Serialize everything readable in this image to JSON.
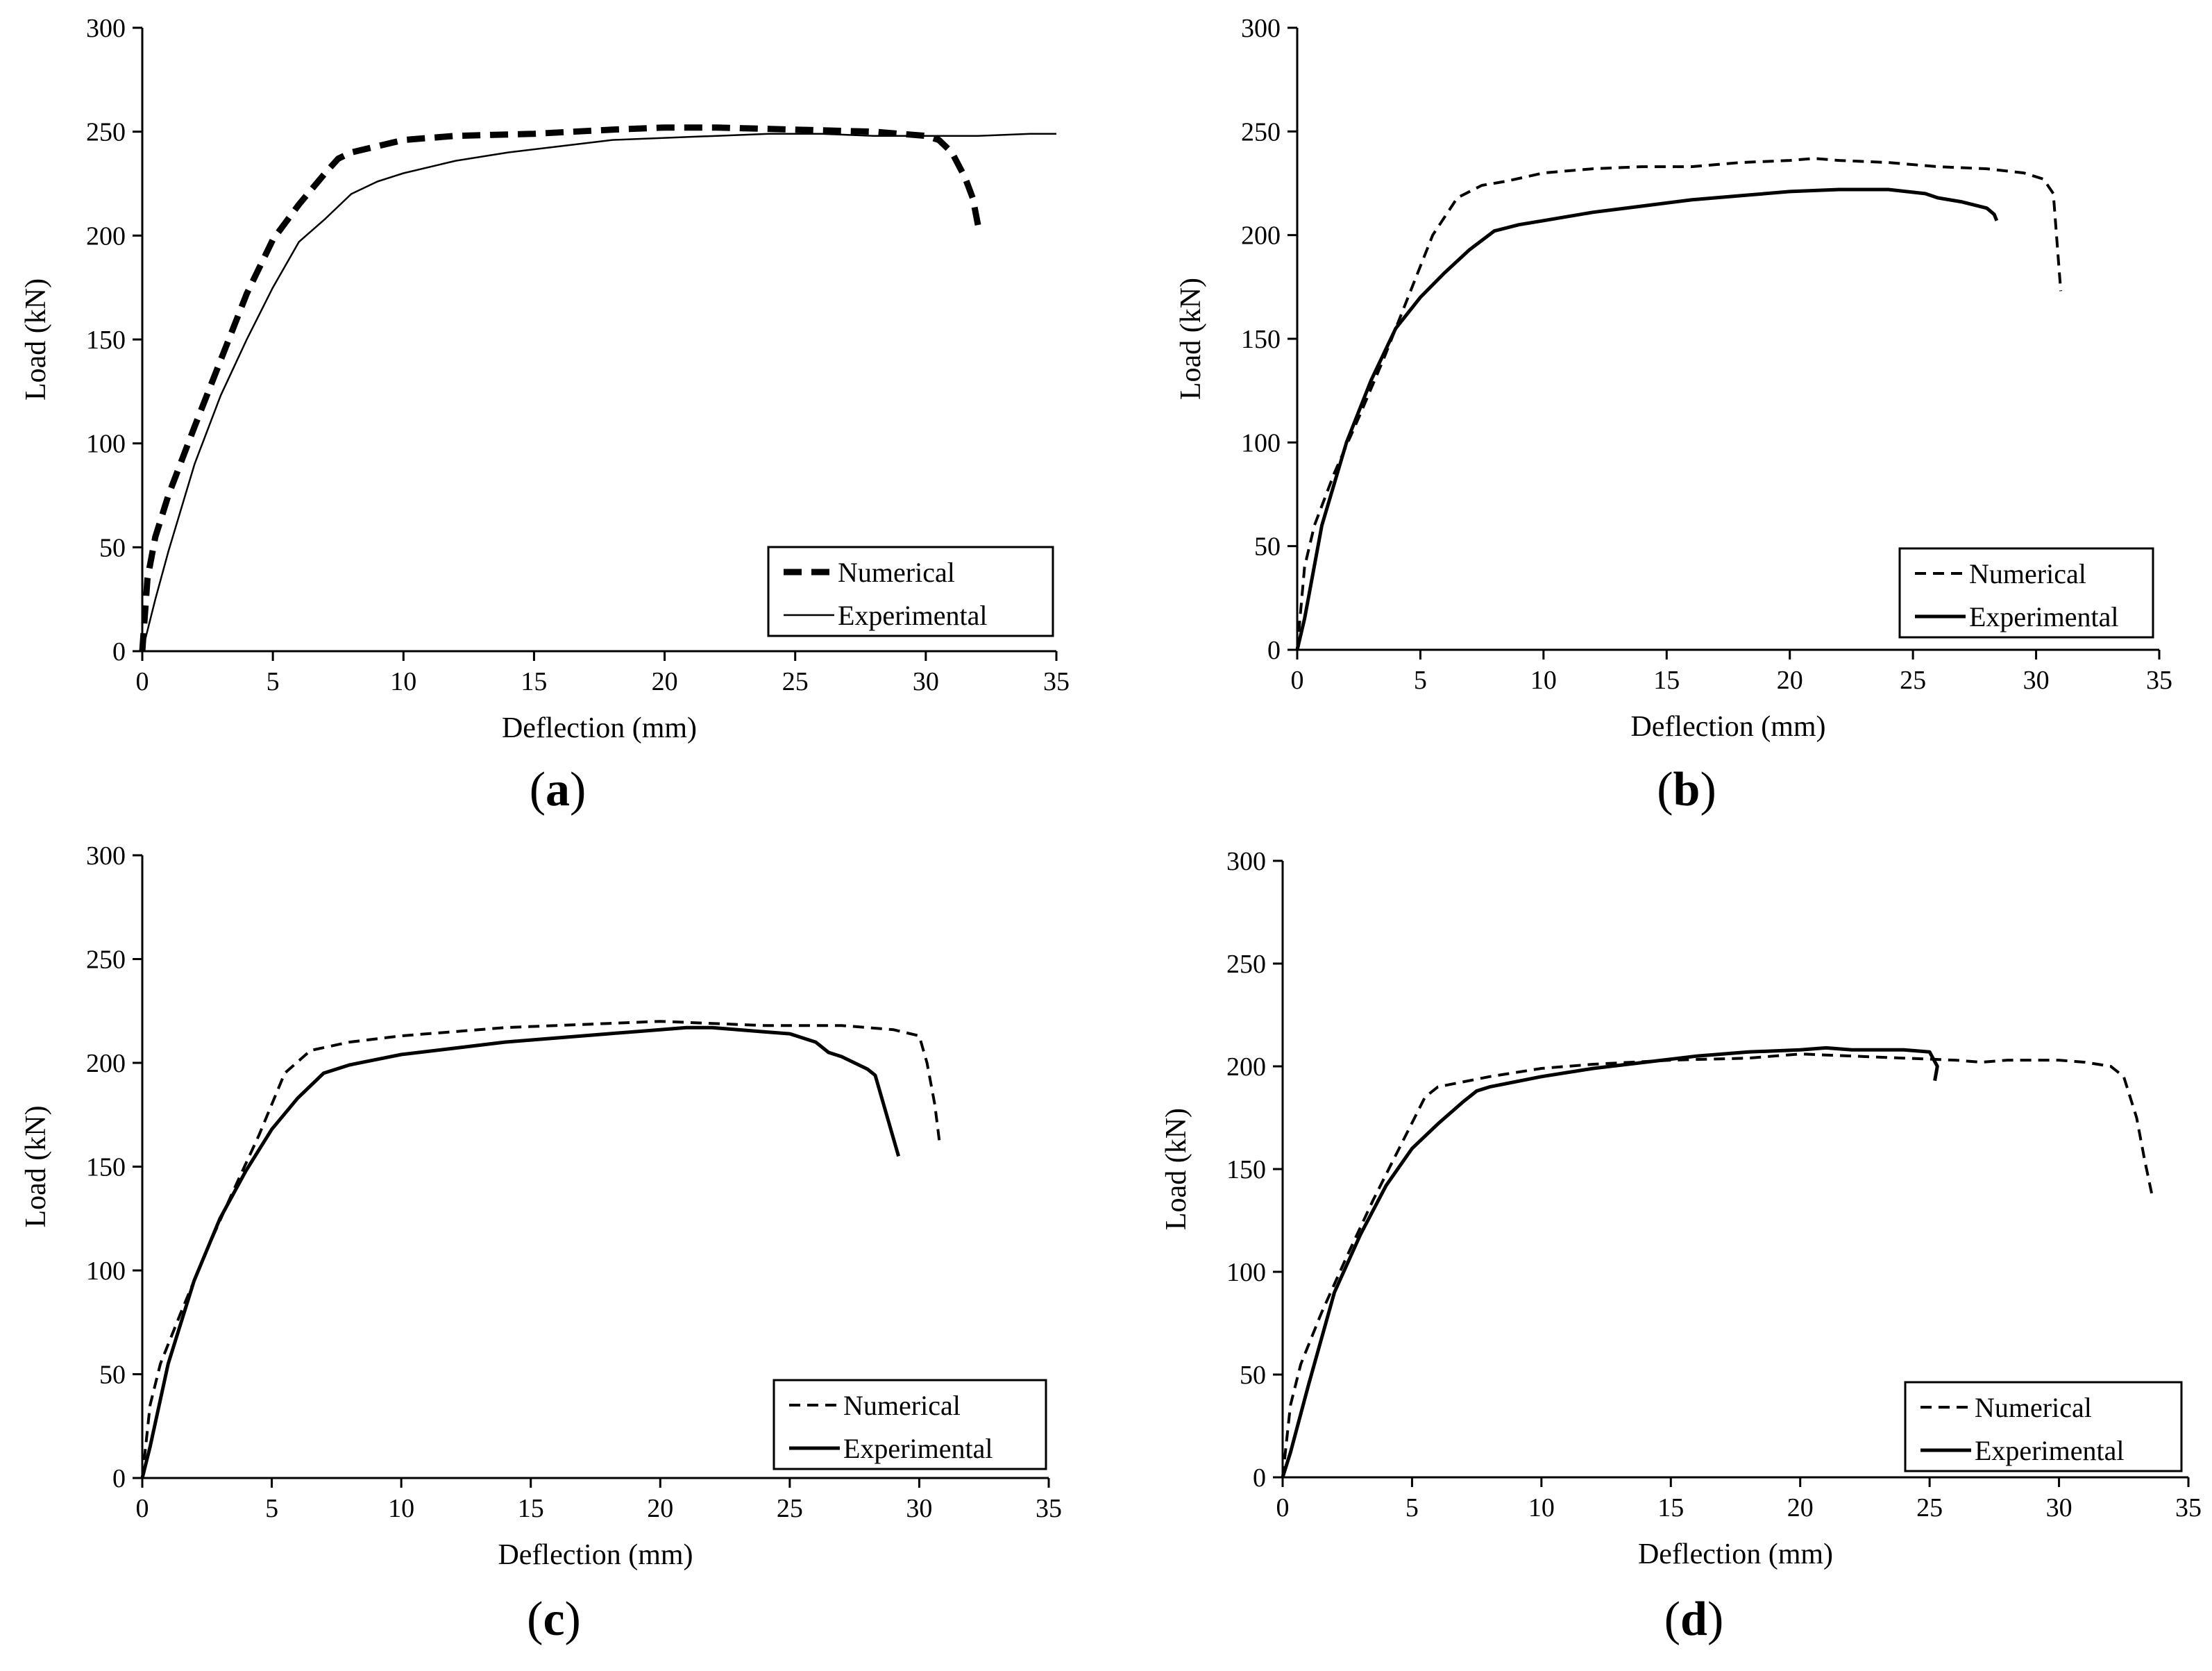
{
  "chart_data": [
    {
      "type": "line",
      "panel_label": "a",
      "xlabel": "Deflection (mm)",
      "ylabel": "Load (kN)",
      "xlim": [
        0,
        35
      ],
      "ylim": [
        0,
        300
      ],
      "xticks": [
        0,
        5,
        10,
        15,
        20,
        25,
        30,
        35
      ],
      "yticks": [
        0,
        50,
        100,
        150,
        200,
        250,
        300
      ],
      "grid": false,
      "legend_position": "bottom-right",
      "series": [
        {
          "name": "Numerical",
          "style": "thick-dashed",
          "x": [
            0,
            0.2,
            0.5,
            1,
            2,
            3,
            4,
            5,
            6,
            7,
            7.5,
            8,
            9,
            10,
            12,
            15,
            18,
            20,
            22,
            25,
            28,
            30,
            30.5,
            31,
            31.5,
            31.8,
            32
          ],
          "y": [
            0,
            35,
            55,
            75,
            108,
            140,
            172,
            198,
            215,
            230,
            237,
            240,
            243,
            246,
            248,
            249,
            251,
            252,
            252,
            251,
            250,
            248,
            246,
            240,
            228,
            218,
            205
          ]
        },
        {
          "name": "Experimental",
          "style": "thin-solid",
          "x": [
            0,
            0.5,
            1,
            2,
            3,
            4,
            5,
            6,
            7,
            8,
            9,
            10,
            12,
            14,
            16,
            18,
            20,
            22,
            24,
            26,
            28,
            30,
            32,
            34,
            35
          ],
          "y": [
            0,
            25,
            48,
            90,
            123,
            150,
            175,
            197,
            208,
            220,
            226,
            230,
            236,
            240,
            243,
            246,
            247,
            248,
            249,
            249,
            248,
            248,
            248,
            249,
            249
          ]
        }
      ]
    },
    {
      "type": "line",
      "panel_label": "b",
      "xlabel": "Deflection (mm)",
      "ylabel": "Load (kN)",
      "xlim": [
        0,
        35
      ],
      "ylim": [
        0,
        300
      ],
      "xticks": [
        0,
        5,
        10,
        15,
        20,
        25,
        30,
        35
      ],
      "yticks": [
        0,
        50,
        100,
        150,
        200,
        250,
        300
      ],
      "grid": false,
      "legend_position": "bottom-right",
      "series": [
        {
          "name": "Numerical",
          "style": "dashed",
          "x": [
            0,
            0.3,
            0.7,
            1.5,
            2.5,
            3.5,
            4.5,
            5.5,
            6.5,
            7.5,
            8.5,
            10,
            12,
            14,
            16,
            18,
            20,
            21,
            22,
            24,
            26,
            28,
            29.5,
            30.3,
            30.7,
            31
          ],
          "y": [
            0,
            40,
            60,
            85,
            112,
            140,
            170,
            200,
            218,
            224,
            226,
            230,
            232,
            233,
            233,
            235,
            236,
            237,
            236,
            235,
            233,
            232,
            230,
            227,
            220,
            173
          ]
        },
        {
          "name": "Experimental",
          "style": "solid",
          "x": [
            0,
            0.3,
            1,
            2,
            3,
            4,
            5,
            6,
            7,
            8,
            9,
            10,
            12,
            14,
            16,
            18,
            20,
            22,
            24,
            25.5,
            26,
            27,
            28,
            28.3,
            28.4
          ],
          "y": [
            0,
            15,
            60,
            100,
            130,
            155,
            170,
            182,
            193,
            202,
            205,
            207,
            211,
            214,
            217,
            219,
            221,
            222,
            222,
            220,
            218,
            216,
            213,
            210,
            207
          ]
        }
      ]
    },
    {
      "type": "line",
      "panel_label": "c",
      "xlabel": "Deflection (mm)",
      "ylabel": "Load (kN)",
      "xlim": [
        0,
        35
      ],
      "ylim": [
        0,
        300
      ],
      "xticks": [
        0,
        5,
        10,
        15,
        20,
        25,
        30,
        35
      ],
      "yticks": [
        0,
        50,
        100,
        150,
        200,
        250,
        300
      ],
      "grid": false,
      "legend_position": "bottom-right",
      "series": [
        {
          "name": "Numerical",
          "style": "dashed",
          "x": [
            0,
            0.3,
            0.7,
            1.5,
            2.5,
            3.5,
            4.5,
            5.5,
            6.5,
            8,
            10,
            12,
            14,
            16,
            18,
            20,
            22,
            24,
            26,
            27,
            28,
            29,
            30,
            30.3,
            30.6,
            30.8
          ],
          "y": [
            0,
            35,
            55,
            80,
            110,
            138,
            165,
            195,
            206,
            210,
            213,
            215,
            217,
            218,
            219,
            220,
            219,
            218,
            218,
            218,
            217,
            216,
            213,
            200,
            180,
            160
          ]
        },
        {
          "name": "Experimental",
          "style": "solid",
          "x": [
            0,
            0.3,
            1,
            2,
            3,
            4,
            5,
            6,
            7,
            8,
            10,
            12,
            14,
            15,
            16,
            18,
            20,
            21,
            22,
            24,
            25,
            26,
            26.5,
            27,
            28,
            28.3,
            29.2
          ],
          "y": [
            0,
            15,
            55,
            95,
            125,
            148,
            168,
            183,
            195,
            199,
            204,
            207,
            210,
            211,
            212,
            214,
            216,
            217,
            217,
            215,
            214,
            210,
            205,
            203,
            197,
            194,
            155
          ]
        }
      ]
    },
    {
      "type": "line",
      "panel_label": "d",
      "xlabel": "Deflection (mm)",
      "ylabel": "Load (kN)",
      "xlim": [
        0,
        35
      ],
      "ylim": [
        0,
        300
      ],
      "xticks": [
        0,
        5,
        10,
        15,
        20,
        25,
        30,
        35
      ],
      "yticks": [
        0,
        50,
        100,
        150,
        200,
        250,
        300
      ],
      "grid": false,
      "legend_position": "bottom-right",
      "series": [
        {
          "name": "Numerical",
          "style": "dashed",
          "x": [
            0,
            0.3,
            0.7,
            1.5,
            2.5,
            3.5,
            4.5,
            5.5,
            6,
            8,
            10,
            12,
            15,
            18,
            20,
            22,
            24,
            26,
            27,
            28,
            30,
            31,
            32,
            32.5,
            33,
            33.3,
            33.6
          ],
          "y": [
            0,
            35,
            55,
            80,
            108,
            135,
            160,
            185,
            190,
            195,
            199,
            201,
            203,
            204,
            206,
            205,
            204,
            203,
            202,
            203,
            203,
            202,
            200,
            195,
            175,
            155,
            137
          ]
        },
        {
          "name": "Experimental",
          "style": "solid",
          "x": [
            0,
            0.3,
            1,
            2,
            3,
            4,
            5,
            6,
            7,
            7.5,
            8,
            10,
            12,
            14,
            16,
            18,
            20,
            21,
            22,
            24,
            25,
            25.3,
            25.2
          ],
          "y": [
            0,
            12,
            45,
            90,
            118,
            142,
            160,
            172,
            183,
            188,
            190,
            195,
            199,
            202,
            205,
            207,
            208,
            209,
            208,
            208,
            207,
            200,
            193
          ]
        }
      ]
    }
  ]
}
